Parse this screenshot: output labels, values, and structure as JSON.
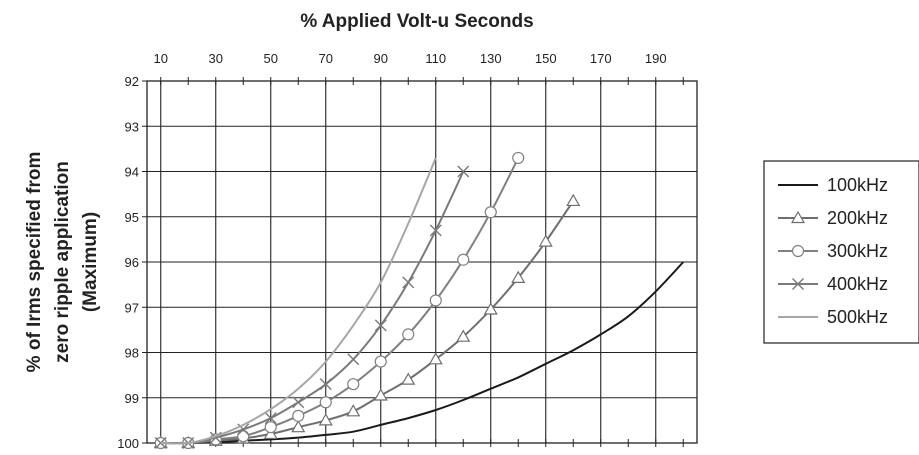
{
  "chart_data": {
    "type": "line",
    "title": "% Applied Volt-u Seconds",
    "ylabel_lines": [
      "% of Irms specified from",
      "zero ripple application",
      "(Maximum)"
    ],
    "x_ticks": [
      10,
      30,
      50,
      70,
      90,
      110,
      130,
      150,
      170,
      190
    ],
    "xlim": [
      5,
      205
    ],
    "y_ticks": [
      92,
      93,
      94,
      95,
      96,
      97,
      98,
      99,
      100
    ],
    "ylim": [
      92,
      100
    ],
    "y_inverted": true,
    "grid": true,
    "legend_position": "right",
    "series": [
      {
        "name": "100kHz",
        "color": "#1a1a1a",
        "marker": "none",
        "x": [
          10,
          20,
          30,
          40,
          50,
          60,
          70,
          80,
          90,
          100,
          110,
          120,
          130,
          140,
          150,
          160,
          170,
          180,
          190,
          200
        ],
        "y": [
          100,
          100,
          99.98,
          99.95,
          99.92,
          99.88,
          99.82,
          99.75,
          99.6,
          99.45,
          99.27,
          99.05,
          98.8,
          98.55,
          98.25,
          97.95,
          97.6,
          97.2,
          96.65,
          96.0
        ]
      },
      {
        "name": "200kHz",
        "color": "#6e6e6e",
        "marker": "triangle",
        "x": [
          10,
          20,
          30,
          40,
          50,
          60,
          70,
          80,
          90,
          100,
          110,
          120,
          130,
          140,
          150,
          160
        ],
        "y": [
          100,
          100,
          99.95,
          99.9,
          99.8,
          99.65,
          99.5,
          99.3,
          98.95,
          98.6,
          98.15,
          97.65,
          97.05,
          96.35,
          95.55,
          94.65
        ]
      },
      {
        "name": "300kHz",
        "color": "#808080",
        "marker": "circle",
        "x": [
          10,
          20,
          30,
          40,
          50,
          60,
          70,
          80,
          90,
          100,
          110,
          120,
          130,
          140
        ],
        "y": [
          100,
          100,
          99.92,
          99.85,
          99.65,
          99.4,
          99.1,
          98.7,
          98.2,
          97.6,
          96.85,
          95.95,
          94.9,
          93.7
        ]
      },
      {
        "name": "400kHz",
        "color": "#7a7a7a",
        "marker": "x",
        "x": [
          10,
          20,
          30,
          40,
          50,
          60,
          70,
          80,
          90,
          100,
          110,
          120
        ],
        "y": [
          100,
          100,
          99.88,
          99.7,
          99.45,
          99.1,
          98.7,
          98.15,
          97.4,
          96.45,
          95.3,
          94.0
        ]
      },
      {
        "name": "500kHz",
        "color": "#a6a6a6",
        "marker": "none",
        "x": [
          10,
          20,
          30,
          40,
          50,
          60,
          70,
          80,
          90,
          100,
          110
        ],
        "y": [
          100,
          100,
          99.85,
          99.6,
          99.25,
          98.8,
          98.2,
          97.4,
          96.45,
          95.15,
          93.7
        ]
      }
    ]
  }
}
